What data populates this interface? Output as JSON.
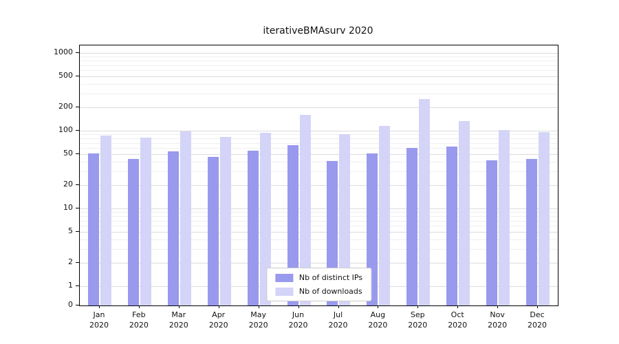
{
  "chart_data": {
    "type": "bar",
    "title": "iterativeBMAsurv 2020",
    "categories": [
      "Jan 2020",
      "Feb 2020",
      "Mar 2020",
      "Apr 2020",
      "May 2020",
      "Jun 2020",
      "Jul 2020",
      "Aug 2020",
      "Sep 2020",
      "Oct 2020",
      "Nov 2020",
      "Dec 2020"
    ],
    "series": [
      {
        "name": "Nb of distinct IPs",
        "color": "#9999ee",
        "values": [
          51,
          43,
          54,
          46,
          56,
          65,
          41,
          51,
          60,
          63,
          42,
          43
        ]
      },
      {
        "name": "Nb of downloads",
        "color": "#d4d4f8",
        "values": [
          86,
          81,
          99,
          84,
          94,
          160,
          91,
          115,
          255,
          132,
          103,
          96
        ]
      }
    ],
    "xlabel": "",
    "ylabel": "",
    "yscale": "symlog",
    "yticks": [
      0,
      1,
      2,
      5,
      10,
      20,
      50,
      100,
      200,
      500,
      1000
    ],
    "ylim": [
      0,
      1000
    ],
    "grid": true,
    "legend_position": "lower center",
    "colors": {
      "axis": "#000000",
      "grid_major": "#dbdbdb",
      "grid_minor": "#efefef",
      "background": "#ffffff"
    }
  }
}
